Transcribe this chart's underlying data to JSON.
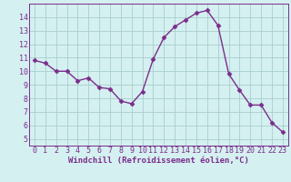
{
  "x": [
    0,
    1,
    2,
    3,
    4,
    5,
    6,
    7,
    8,
    9,
    10,
    11,
    12,
    13,
    14,
    15,
    16,
    17,
    18,
    19,
    20,
    21,
    22,
    23
  ],
  "y": [
    10.8,
    10.6,
    10.0,
    10.0,
    9.3,
    9.5,
    8.8,
    8.7,
    7.8,
    7.6,
    8.5,
    10.9,
    12.5,
    13.3,
    13.8,
    14.3,
    14.5,
    13.4,
    9.8,
    8.6,
    7.5,
    7.5,
    6.2,
    5.5
  ],
  "line_color": "#7b2d8b",
  "marker": "D",
  "markersize": 2.5,
  "linewidth": 1.0,
  "bg_color": "#d4f0f0",
  "grid_color": "#aacece",
  "xlabel": "Windchill (Refroidissement éolien,°C)",
  "xlabel_fontsize": 6.5,
  "xtick_labels": [
    "0",
    "1",
    "2",
    "3",
    "4",
    "5",
    "6",
    "7",
    "8",
    "9",
    "10",
    "11",
    "12",
    "13",
    "14",
    "15",
    "16",
    "17",
    "18",
    "19",
    "20",
    "21",
    "22",
    "23"
  ],
  "ytick_labels": [
    "5",
    "6",
    "7",
    "8",
    "9",
    "10",
    "11",
    "12",
    "13",
    "14"
  ],
  "ylim": [
    4.5,
    15.0
  ],
  "xlim": [
    -0.5,
    23.5
  ],
  "tick_fontsize": 6.0,
  "spine_color": "#7b2d8b"
}
